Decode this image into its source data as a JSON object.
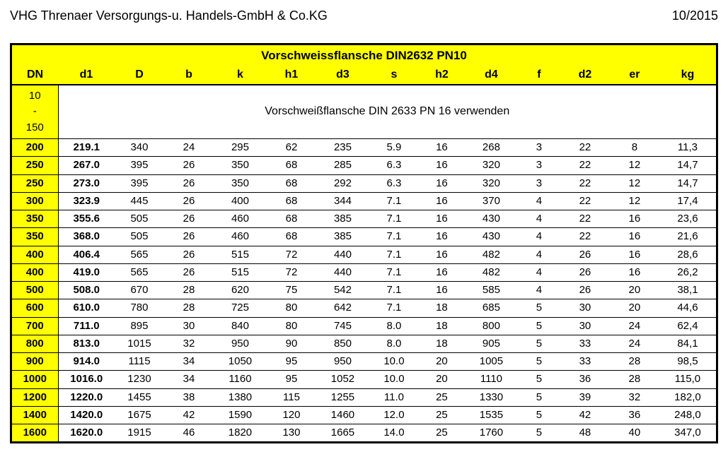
{
  "header": {
    "company": "VHG Threnaer Versorgungs-u. Handels-GmbH & Co.KG",
    "date": "10/2015"
  },
  "table": {
    "title": "Vorschweissflansche DIN2632 PN10",
    "columns": [
      "DN",
      "d1",
      "D",
      "b",
      "k",
      "h1",
      "d3",
      "s",
      "h2",
      "d4",
      "f",
      "d2",
      "er",
      "kg"
    ],
    "note_dn_range": "10\n-\n150",
    "note_text": "Vorschweißflansche DIN 2633 PN 16 verwenden",
    "rows": [
      {
        "DN": "200",
        "d1": "219.1",
        "D": "340",
        "b": "24",
        "k": "295",
        "h1": "62",
        "d3": "235",
        "s": "5.9",
        "h2": "16",
        "d4": "268",
        "f": "3",
        "d2": "22",
        "er": "8",
        "kg": "11,3"
      },
      {
        "DN": "250",
        "d1": "267.0",
        "D": "395",
        "b": "26",
        "k": "350",
        "h1": "68",
        "d3": "285",
        "s": "6.3",
        "h2": "16",
        "d4": "320",
        "f": "3",
        "d2": "22",
        "er": "12",
        "kg": "14,7"
      },
      {
        "DN": "250",
        "d1": "273.0",
        "D": "395",
        "b": "26",
        "k": "350",
        "h1": "68",
        "d3": "292",
        "s": "6.3",
        "h2": "16",
        "d4": "320",
        "f": "3",
        "d2": "22",
        "er": "12",
        "kg": "14,7"
      },
      {
        "DN": "300",
        "d1": "323.9",
        "D": "445",
        "b": "26",
        "k": "400",
        "h1": "68",
        "d3": "344",
        "s": "7.1",
        "h2": "16",
        "d4": "370",
        "f": "4",
        "d2": "22",
        "er": "12",
        "kg": "17,4"
      },
      {
        "DN": "350",
        "d1": "355.6",
        "D": "505",
        "b": "26",
        "k": "460",
        "h1": "68",
        "d3": "385",
        "s": "7.1",
        "h2": "16",
        "d4": "430",
        "f": "4",
        "d2": "22",
        "er": "16",
        "kg": "23,6"
      },
      {
        "DN": "350",
        "d1": "368.0",
        "D": "505",
        "b": "26",
        "k": "460",
        "h1": "68",
        "d3": "385",
        "s": "7.1",
        "h2": "16",
        "d4": "430",
        "f": "4",
        "d2": "22",
        "er": "16",
        "kg": "21,6"
      },
      {
        "DN": "400",
        "d1": "406.4",
        "D": "565",
        "b": "26",
        "k": "515",
        "h1": "72",
        "d3": "440",
        "s": "7.1",
        "h2": "16",
        "d4": "482",
        "f": "4",
        "d2": "26",
        "er": "16",
        "kg": "28,6"
      },
      {
        "DN": "400",
        "d1": "419.0",
        "D": "565",
        "b": "26",
        "k": "515",
        "h1": "72",
        "d3": "440",
        "s": "7.1",
        "h2": "16",
        "d4": "482",
        "f": "4",
        "d2": "26",
        "er": "16",
        "kg": "26,2"
      },
      {
        "DN": "500",
        "d1": "508.0",
        "D": "670",
        "b": "28",
        "k": "620",
        "h1": "75",
        "d3": "542",
        "s": "7.1",
        "h2": "16",
        "d4": "585",
        "f": "4",
        "d2": "26",
        "er": "20",
        "kg": "38,1"
      },
      {
        "DN": "600",
        "d1": "610.0",
        "D": "780",
        "b": "28",
        "k": "725",
        "h1": "80",
        "d3": "642",
        "s": "7.1",
        "h2": "18",
        "d4": "685",
        "f": "5",
        "d2": "30",
        "er": "20",
        "kg": "44,6"
      },
      {
        "DN": "700",
        "d1": "711.0",
        "D": "895",
        "b": "30",
        "k": "840",
        "h1": "80",
        "d3": "745",
        "s": "8.0",
        "h2": "18",
        "d4": "800",
        "f": "5",
        "d2": "30",
        "er": "24",
        "kg": "62,4"
      },
      {
        "DN": "800",
        "d1": "813.0",
        "D": "1015",
        "b": "32",
        "k": "950",
        "h1": "90",
        "d3": "850",
        "s": "8.0",
        "h2": "18",
        "d4": "905",
        "f": "5",
        "d2": "33",
        "er": "24",
        "kg": "84,1"
      },
      {
        "DN": "900",
        "d1": "914.0",
        "D": "1115",
        "b": "34",
        "k": "1050",
        "h1": "95",
        "d3": "950",
        "s": "10.0",
        "h2": "20",
        "d4": "1005",
        "f": "5",
        "d2": "33",
        "er": "28",
        "kg": "98,5"
      },
      {
        "DN": "1000",
        "d1": "1016.0",
        "D": "1230",
        "b": "34",
        "k": "1160",
        "h1": "95",
        "d3": "1052",
        "s": "10.0",
        "h2": "20",
        "d4": "1110",
        "f": "5",
        "d2": "36",
        "er": "28",
        "kg": "115,0"
      },
      {
        "DN": "1200",
        "d1": "1220.0",
        "D": "1455",
        "b": "38",
        "k": "1380",
        "h1": "115",
        "d3": "1255",
        "s": "11.0",
        "h2": "25",
        "d4": "1330",
        "f": "5",
        "d2": "39",
        "er": "32",
        "kg": "182,0"
      },
      {
        "DN": "1400",
        "d1": "1420.0",
        "D": "1675",
        "b": "42",
        "k": "1590",
        "h1": "120",
        "d3": "1460",
        "s": "12.0",
        "h2": "25",
        "d4": "1535",
        "f": "5",
        "d2": "42",
        "er": "36",
        "kg": "248,0"
      },
      {
        "DN": "1600",
        "d1": "1620.0",
        "D": "1915",
        "b": "46",
        "k": "1820",
        "h1": "130",
        "d3": "1665",
        "s": "14.0",
        "h2": "25",
        "d4": "1760",
        "f": "5",
        "d2": "48",
        "er": "40",
        "kg": "347,0"
      }
    ]
  },
  "style": {
    "highlight_color": "#ffff00",
    "border_color": "#000000",
    "text_color": "#000000",
    "background_color": "#ffffff",
    "font_family": "Arial",
    "title_fontsize": 17,
    "header_fontsize": 16,
    "cell_fontsize": 15,
    "outer_border_width": 3,
    "row_border_width": 1.5
  }
}
